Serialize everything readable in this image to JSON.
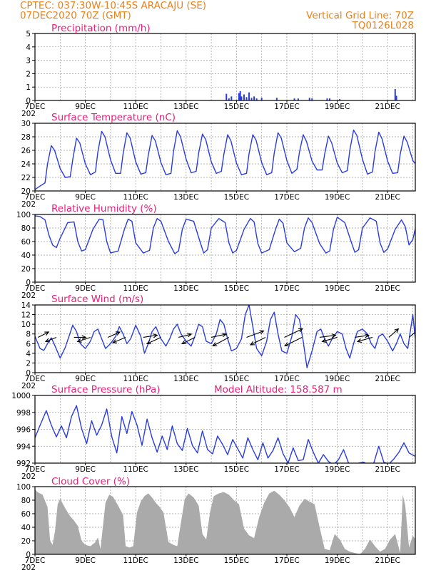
{
  "header": {
    "left_line1": "CPTEC:   037:30W-10:45S   ARACAJU (SE)",
    "left_line2": "07DEC2020 70Z (GMT)",
    "right_line1": "Vertical Grid Line: 70Z",
    "right_line2": "TQ0126L028"
  },
  "colors": {
    "header": "#e8801a",
    "title": "#e8207a",
    "series": "#2a3ddb",
    "cloud": "#aaaaaa",
    "arrow": "#000000"
  },
  "x_labels": [
    "7DEC",
    "9DEC",
    "11DEC",
    "13DEC",
    "15DEC",
    "17DEC",
    "19DEC",
    "21DEC"
  ],
  "x_stub": "202",
  "chart_data": [
    {
      "id": "precip",
      "type": "bar",
      "title": "Precipitation (mm/h)",
      "ylim": [
        0,
        5
      ],
      "yticks": [
        0,
        1,
        2,
        3,
        4,
        5
      ],
      "x_unit": "days since 07DEC2020 00Z",
      "xlim": [
        0,
        15.1
      ],
      "x": [
        7.6,
        7.7,
        7.8,
        8.1,
        8.15,
        8.2,
        8.3,
        8.4,
        8.5,
        8.6,
        8.7,
        8.8,
        9.0,
        9.6,
        10.3,
        10.45,
        10.9,
        11.0,
        11.6,
        11.7,
        12.1,
        14.3,
        14.35
      ],
      "values": [
        0.5,
        0.15,
        0.3,
        0.55,
        0.7,
        0.3,
        0.45,
        0.25,
        0.6,
        0.2,
        0.3,
        0.15,
        0.2,
        0.2,
        0.15,
        0.15,
        0.2,
        0.15,
        0.15,
        0.15,
        0.1,
        0.85,
        0.35
      ],
      "grid": true
    },
    {
      "id": "temp",
      "type": "line",
      "title": "Surface Temperature (nC)",
      "ylim": [
        20,
        30
      ],
      "yticks": [
        20,
        22,
        24,
        26,
        28,
        30
      ],
      "xlim": [
        0,
        15.1
      ],
      "x": [
        0,
        0.15,
        0.4,
        0.5,
        0.65,
        0.78,
        1.0,
        1.2,
        1.4,
        1.5,
        1.65,
        1.78,
        2.0,
        2.2,
        2.4,
        2.5,
        2.65,
        2.78,
        3.0,
        3.2,
        3.4,
        3.5,
        3.65,
        3.78,
        4.0,
        4.2,
        4.4,
        4.5,
        4.65,
        4.78,
        5.0,
        5.2,
        5.4,
        5.5,
        5.65,
        5.78,
        6.0,
        6.2,
        6.4,
        6.5,
        6.65,
        6.78,
        7.0,
        7.2,
        7.4,
        7.5,
        7.65,
        7.78,
        8.0,
        8.2,
        8.4,
        8.5,
        8.65,
        8.78,
        9.0,
        9.2,
        9.4,
        9.5,
        9.65,
        9.78,
        10.0,
        10.2,
        10.4,
        10.5,
        10.65,
        10.78,
        11.0,
        11.2,
        11.4,
        11.5,
        11.65,
        11.78,
        12.0,
        12.2,
        12.4,
        12.5,
        12.65,
        12.78,
        13.0,
        13.2,
        13.4,
        13.5,
        13.65,
        13.78,
        14.0,
        14.2,
        14.4,
        14.5,
        14.65,
        14.78,
        15.0,
        15.1
      ],
      "values": [
        20.2,
        20.6,
        21.2,
        24.0,
        26.7,
        26.0,
        23.3,
        22.0,
        22.1,
        24.6,
        27.8,
        27.1,
        24.0,
        22.4,
        22.8,
        25.8,
        28.8,
        28.0,
        24.6,
        22.6,
        22.6,
        25.5,
        28.6,
        27.8,
        24.3,
        22.5,
        22.7,
        25.3,
        28.2,
        27.4,
        24.2,
        22.4,
        22.6,
        25.8,
        28.9,
        28.0,
        24.7,
        22.7,
        22.9,
        25.6,
        28.4,
        27.6,
        24.3,
        22.6,
        22.9,
        25.4,
        28.3,
        27.4,
        24.1,
        22.4,
        22.6,
        25.5,
        28.3,
        27.5,
        24.2,
        22.4,
        22.7,
        25.6,
        28.6,
        27.8,
        24.5,
        22.6,
        23.2,
        25.7,
        28.3,
        27.3,
        24.4,
        23.1,
        23.1,
        25.4,
        28.1,
        27.1,
        24.1,
        22.7,
        23.0,
        26.0,
        29.0,
        28.2,
        24.7,
        22.5,
        22.8,
        25.8,
        28.7,
        27.7,
        24.4,
        22.6,
        22.7,
        25.4,
        28.1,
        27.2,
        24.5,
        24.0
      ],
      "grid": true
    },
    {
      "id": "rh",
      "type": "line",
      "title": "Relative Humidity (%)",
      "ylim": [
        0,
        100
      ],
      "yticks": [
        0,
        20,
        40,
        60,
        80,
        100
      ],
      "xlim": [
        0,
        15.1
      ],
      "x": [
        0,
        0.2,
        0.4,
        0.55,
        0.7,
        0.85,
        1.0,
        1.3,
        1.55,
        1.7,
        1.85,
        2.0,
        2.3,
        2.55,
        2.7,
        2.85,
        3.0,
        3.3,
        3.55,
        3.7,
        3.85,
        4.0,
        4.3,
        4.55,
        4.7,
        4.85,
        5.0,
        5.3,
        5.55,
        5.7,
        5.85,
        6.0,
        6.3,
        6.55,
        6.7,
        6.85,
        7.0,
        7.3,
        7.55,
        7.7,
        7.85,
        8.0,
        8.3,
        8.55,
        8.7,
        8.85,
        9.0,
        9.3,
        9.55,
        9.7,
        9.85,
        10.0,
        10.3,
        10.55,
        10.7,
        10.85,
        11.0,
        11.3,
        11.55,
        11.7,
        11.85,
        12.0,
        12.3,
        12.55,
        12.7,
        12.85,
        13.0,
        13.3,
        13.55,
        13.7,
        13.85,
        14.0,
        14.3,
        14.55,
        14.7,
        14.85,
        15.0,
        15.1
      ],
      "values": [
        98,
        97,
        92,
        70,
        55,
        51,
        65,
        88,
        89,
        60,
        46,
        48,
        78,
        93,
        92,
        60,
        43,
        46,
        78,
        93,
        90,
        58,
        43,
        47,
        80,
        94,
        90,
        60,
        42,
        46,
        78,
        93,
        90,
        60,
        43,
        48,
        80,
        94,
        88,
        58,
        43,
        47,
        78,
        94,
        89,
        57,
        43,
        48,
        78,
        93,
        87,
        58,
        45,
        50,
        80,
        95,
        88,
        57,
        43,
        46,
        78,
        96,
        88,
        60,
        44,
        48,
        80,
        95,
        90,
        58,
        44,
        49,
        78,
        92,
        82,
        55,
        63,
        79
      ],
      "grid": true
    },
    {
      "id": "wind",
      "type": "line",
      "title": "Surface Wind (m/s)",
      "ylim": [
        0,
        14
      ],
      "yticks": [
        0,
        2,
        4,
        6,
        8,
        10,
        12,
        14
      ],
      "xlim": [
        0,
        15.1
      ],
      "x": [
        0,
        0.2,
        0.35,
        0.5,
        0.65,
        0.8,
        1.0,
        1.2,
        1.35,
        1.5,
        1.65,
        1.8,
        2.0,
        2.2,
        2.35,
        2.5,
        2.65,
        2.8,
        3.0,
        3.2,
        3.35,
        3.5,
        3.65,
        3.8,
        4.0,
        4.2,
        4.35,
        4.5,
        4.65,
        4.8,
        5.0,
        5.2,
        5.35,
        5.5,
        5.65,
        5.8,
        6.0,
        6.2,
        6.35,
        6.5,
        6.65,
        6.8,
        7.0,
        7.2,
        7.35,
        7.5,
        7.65,
        7.8,
        8.0,
        8.2,
        8.35,
        8.5,
        8.65,
        8.8,
        9.0,
        9.2,
        9.35,
        9.5,
        9.65,
        9.8,
        10.0,
        10.2,
        10.35,
        10.5,
        10.65,
        10.8,
        11.0,
        11.2,
        11.35,
        11.5,
        11.65,
        11.8,
        12.0,
        12.2,
        12.35,
        12.5,
        12.65,
        12.8,
        13.0,
        13.2,
        13.35,
        13.5,
        13.65,
        13.8,
        14.0,
        14.2,
        14.35,
        14.5,
        14.65,
        14.8,
        15.0,
        15.1
      ],
      "values": [
        7.5,
        5.0,
        4.6,
        6.0,
        7.2,
        5.5,
        3.0,
        5.2,
        7.5,
        9.8,
        8.5,
        6.0,
        5.0,
        6.5,
        8.5,
        9.0,
        7.0,
        5.0,
        6.0,
        7.5,
        9.5,
        8.0,
        6.0,
        7.0,
        9.8,
        7.5,
        4.0,
        6.0,
        8.5,
        9.5,
        7.0,
        5.5,
        7.0,
        9.0,
        10.0,
        8.0,
        6.5,
        5.5,
        7.5,
        10.0,
        9.5,
        6.5,
        6.0,
        8.0,
        11.0,
        10.0,
        7.0,
        4.5,
        5.0,
        7.0,
        12.0,
        14.0,
        9.5,
        5.0,
        3.5,
        6.5,
        11.0,
        12.5,
        8.0,
        4.5,
        4.0,
        7.5,
        12.0,
        11.0,
        6.5,
        1.0,
        4.5,
        8.5,
        9.0,
        7.0,
        5.5,
        7.0,
        8.5,
        8.0,
        5.0,
        3.0,
        6.0,
        8.5,
        9.0,
        8.0,
        6.0,
        5.0,
        7.5,
        8.0,
        6.5,
        4.5,
        6.0,
        8.0,
        6.0,
        5.0,
        12.0,
        7.0
      ],
      "vectors": [
        {
          "x": 0.12,
          "u": 0.5,
          "v": 0.25
        },
        {
          "x": 0.85,
          "u": -0.5,
          "v": -0.2
        },
        {
          "x": 1.55,
          "u": 0.55,
          "v": 0.0
        },
        {
          "x": 2.2,
          "u": -0.6,
          "v": -0.2
        },
        {
          "x": 2.9,
          "u": 0.55,
          "v": 0.25
        },
        {
          "x": 3.6,
          "u": -0.6,
          "v": -0.25
        },
        {
          "x": 4.3,
          "u": 0.65,
          "v": 0.1
        },
        {
          "x": 5.0,
          "u": -0.65,
          "v": -0.3
        },
        {
          "x": 5.7,
          "u": 0.6,
          "v": 0.15
        },
        {
          "x": 6.35,
          "u": -0.6,
          "v": -0.3
        },
        {
          "x": 7.0,
          "u": 0.7,
          "v": 0.15
        },
        {
          "x": 7.7,
          "u": -0.75,
          "v": -0.4
        },
        {
          "x": 8.4,
          "u": 0.8,
          "v": 0.3
        },
        {
          "x": 9.15,
          "u": -0.7,
          "v": -0.35
        },
        {
          "x": 9.9,
          "u": 0.85,
          "v": 0.4
        },
        {
          "x": 10.6,
          "u": -0.8,
          "v": -0.4
        },
        {
          "x": 11.3,
          "u": 0.75,
          "v": 0.1
        },
        {
          "x": 12.0,
          "u": -0.7,
          "v": -0.2
        },
        {
          "x": 12.7,
          "u": 0.65,
          "v": 0.1
        },
        {
          "x": 13.4,
          "u": -0.7,
          "v": -0.2
        },
        {
          "x": 14.05,
          "u": 0.45,
          "v": 0.4
        },
        {
          "x": 14.85,
          "u": 0.55,
          "v": 0.45
        }
      ],
      "grid": true
    },
    {
      "id": "pressure",
      "type": "line",
      "title": "Surface Pressure (hPa)",
      "annotation": "Model Altitude: 158.587 m",
      "ylim": [
        992,
        1000
      ],
      "yticks": [
        992,
        994,
        996,
        998,
        1000
      ],
      "xlim": [
        0,
        15.1
      ],
      "x": [
        0,
        0.25,
        0.45,
        0.65,
        0.85,
        1.05,
        1.25,
        1.45,
        1.65,
        1.85,
        2.05,
        2.25,
        2.45,
        2.65,
        2.85,
        3.05,
        3.25,
        3.45,
        3.65,
        3.85,
        4.05,
        4.25,
        4.45,
        4.65,
        4.85,
        5.05,
        5.25,
        5.45,
        5.65,
        5.85,
        6.05,
        6.25,
        6.45,
        6.65,
        6.85,
        7.05,
        7.25,
        7.45,
        7.65,
        7.85,
        8.05,
        8.25,
        8.45,
        8.65,
        8.85,
        9.05,
        9.25,
        9.45,
        9.65,
        9.85,
        10.05,
        10.25,
        10.45,
        10.65,
        10.85,
        11.05,
        11.25,
        11.45,
        11.65,
        11.85,
        12.05,
        12.25,
        12.45,
        12.65,
        12.85,
        13.05,
        13.25,
        13.45,
        13.65,
        13.85,
        14.05,
        14.25,
        14.45,
        14.65,
        14.85,
        15.1
      ],
      "values": [
        995.0,
        996.8,
        998.2,
        996.5,
        995.1,
        996.4,
        995.0,
        997.5,
        998.8,
        996.1,
        994.3,
        997.0,
        995.3,
        996.5,
        998.4,
        995.1,
        993.2,
        997.5,
        995.5,
        998.1,
        996.5,
        994.1,
        997.2,
        995.0,
        993.3,
        995.2,
        993.6,
        996.4,
        994.3,
        993.5,
        996.1,
        994.1,
        993.2,
        995.8,
        993.6,
        993.1,
        995.2,
        994.2,
        993.0,
        994.8,
        993.7,
        992.6,
        995.0,
        993.6,
        992.4,
        994.4,
        992.6,
        993.5,
        995.0,
        993.1,
        992.0,
        993.8,
        992.3,
        992.4,
        994.8,
        993.3,
        992.0,
        993.0,
        992.2,
        991.8,
        992.4,
        993.6,
        992.0,
        991.8,
        992.0,
        992.1,
        991.8,
        992.0,
        994.0,
        992.1,
        991.9,
        992.5,
        993.3,
        994.4,
        993.2,
        992.8
      ],
      "grid": true
    },
    {
      "id": "cloud",
      "type": "area",
      "title": "Cloud Cover (%)",
      "ylim": [
        0,
        100
      ],
      "yticks": [
        0,
        20,
        40,
        60,
        80,
        100
      ],
      "xlim": [
        0,
        15.1
      ],
      "x": [
        0,
        0.1,
        0.3,
        0.5,
        0.6,
        0.7,
        0.8,
        0.9,
        1.0,
        1.2,
        1.4,
        1.55,
        1.7,
        1.85,
        2.0,
        2.2,
        2.4,
        2.5,
        2.6,
        2.8,
        2.95,
        3.1,
        3.3,
        3.5,
        3.6,
        3.75,
        3.9,
        4.05,
        4.2,
        4.35,
        4.5,
        4.65,
        4.8,
        4.95,
        5.1,
        5.3,
        5.5,
        5.65,
        5.8,
        5.95,
        6.1,
        6.3,
        6.5,
        6.65,
        6.8,
        6.95,
        7.1,
        7.3,
        7.5,
        7.7,
        7.9,
        8.1,
        8.3,
        8.5,
        8.7,
        8.9,
        9.1,
        9.3,
        9.5,
        9.7,
        9.9,
        10.1,
        10.3,
        10.5,
        10.7,
        10.9,
        11.1,
        11.3,
        11.5,
        11.7,
        11.9,
        12.1,
        12.3,
        12.5,
        12.7,
        12.9,
        13.1,
        13.3,
        13.5,
        13.7,
        13.9,
        14.1,
        14.3,
        14.5,
        14.6,
        14.7,
        14.85,
        15.0,
        15.1
      ],
      "values": [
        96,
        92,
        88,
        70,
        20,
        14,
        35,
        74,
        82,
        68,
        56,
        50,
        42,
        20,
        14,
        12,
        18,
        25,
        8,
        76,
        88,
        85,
        72,
        58,
        12,
        10,
        12,
        62,
        78,
        86,
        90,
        84,
        76,
        70,
        62,
        18,
        14,
        12,
        48,
        82,
        90,
        84,
        72,
        30,
        22,
        62,
        86,
        90,
        92,
        88,
        80,
        74,
        38,
        28,
        24,
        55,
        76,
        90,
        94,
        88,
        80,
        70,
        55,
        72,
        82,
        78,
        74,
        40,
        8,
        6,
        30,
        22,
        8,
        4,
        2,
        0,
        8,
        22,
        12,
        4,
        8,
        22,
        30,
        2,
        88,
        72,
        10,
        28,
        22
      ],
      "grid": true
    }
  ]
}
